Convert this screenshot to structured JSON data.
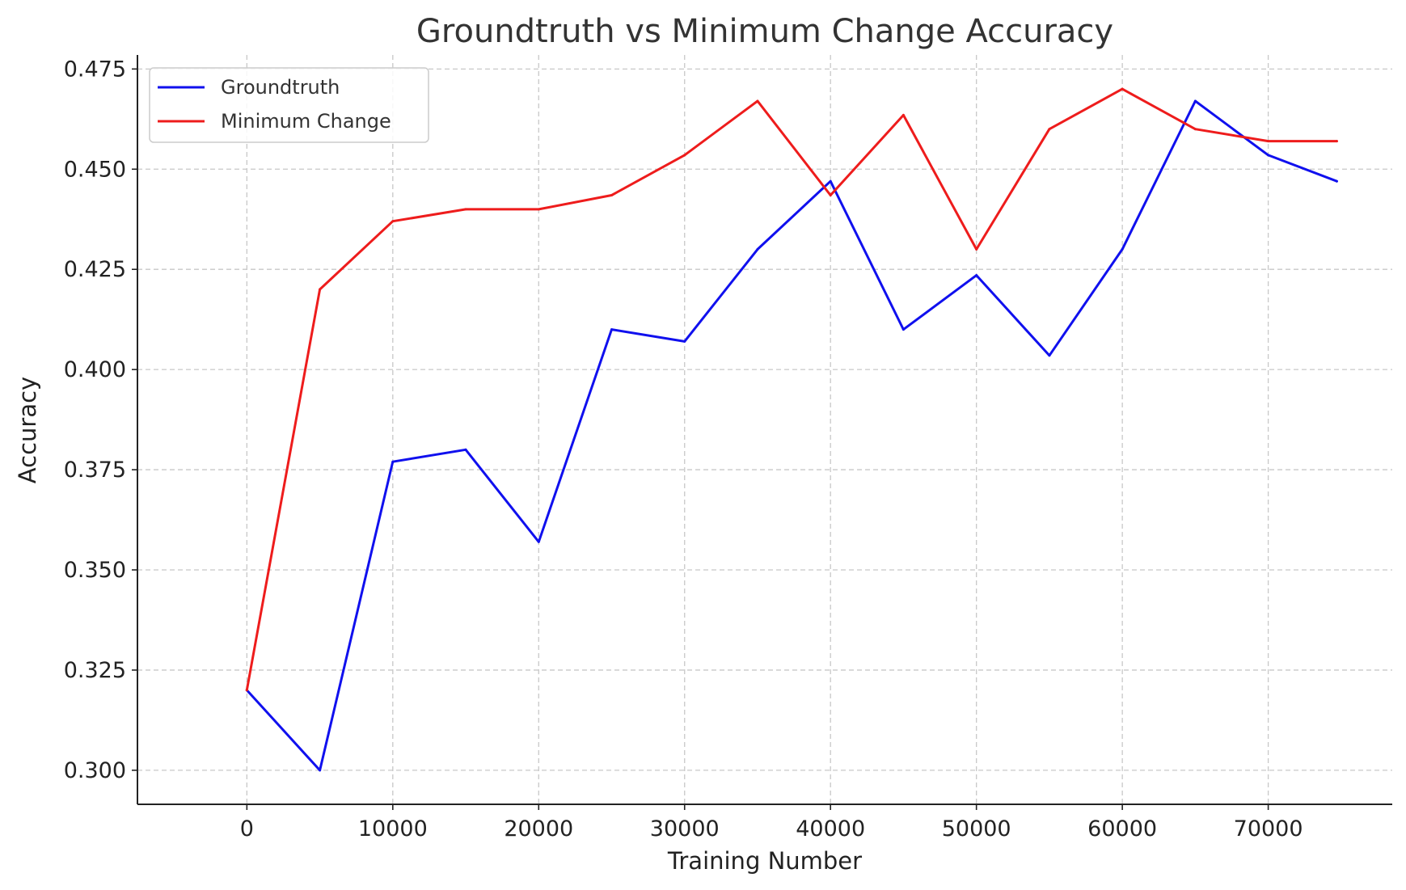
{
  "chart_data": {
    "type": "line",
    "title": "Groundtruth vs Minimum Change Accuracy",
    "xlabel": "Training Number",
    "ylabel": "Accuracy",
    "xlim": [
      -7500,
      78500
    ],
    "ylim": [
      0.2915,
      0.4785
    ],
    "x_ticks": [
      0,
      10000,
      20000,
      30000,
      40000,
      50000,
      60000,
      70000
    ],
    "x_tick_labels": [
      "0",
      "10000",
      "20000",
      "30000",
      "40000",
      "50000",
      "60000",
      "70000"
    ],
    "y_ticks": [
      0.3,
      0.325,
      0.35,
      0.375,
      0.4,
      0.425,
      0.45,
      0.475
    ],
    "y_tick_labels": [
      "0.300",
      "0.325",
      "0.350",
      "0.375",
      "0.400",
      "0.425",
      "0.450",
      "0.475"
    ],
    "grid": true,
    "legend_position": "top-left",
    "x": [
      0,
      5000,
      10000,
      15000,
      20000,
      25000,
      30000,
      35000,
      40000,
      45000,
      50000,
      55000,
      60000,
      65000,
      70000,
      74700
    ],
    "series": [
      {
        "name": "Groundtruth",
        "color": "#1010ee",
        "values": [
          0.32,
          0.3,
          0.377,
          0.38,
          0.357,
          0.41,
          0.407,
          0.43,
          0.447,
          0.41,
          0.4235,
          0.4035,
          0.43,
          0.467,
          0.4535,
          0.447
        ]
      },
      {
        "name": "Minimum Change",
        "color": "#ee1c1c",
        "values": [
          0.32,
          0.42,
          0.437,
          0.44,
          0.44,
          0.4435,
          0.4535,
          0.467,
          0.4435,
          0.4635,
          0.43,
          0.46,
          0.47,
          0.46,
          0.457,
          0.457
        ]
      }
    ]
  }
}
